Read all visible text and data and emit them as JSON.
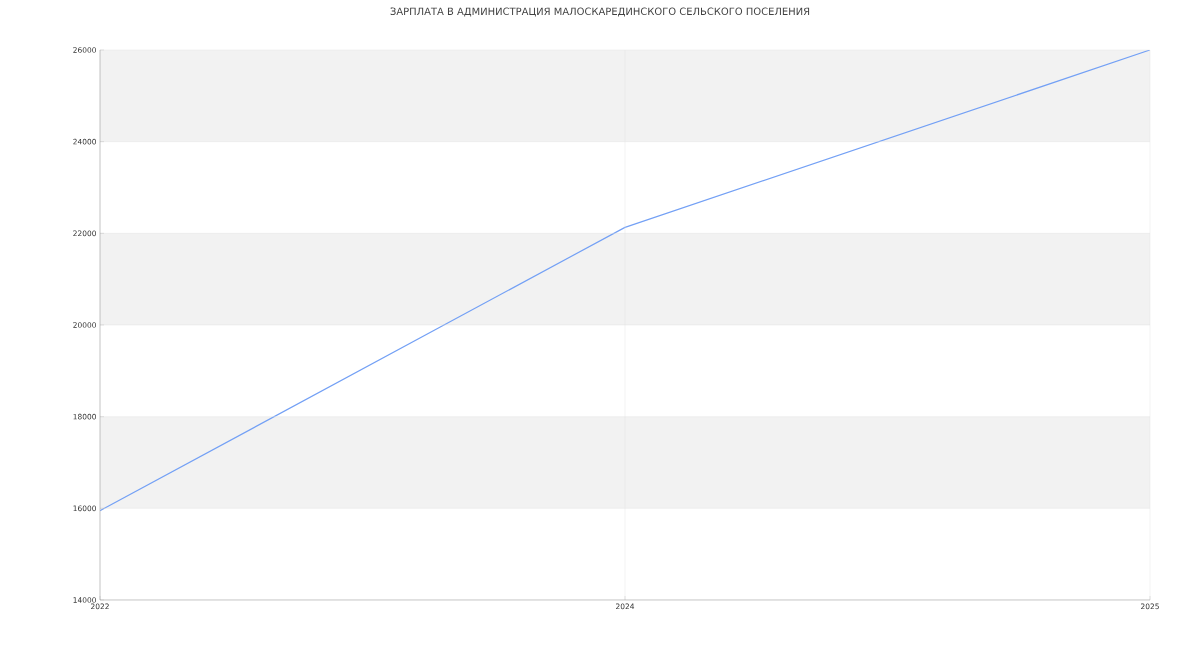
{
  "chart_data": {
    "type": "line",
    "title": "ЗАРПЛАТА В АДМИНИСТРАЦИЯ МАЛОСКАРЕДИНСКОГО СЕЛЬСКОГО ПОСЕЛЕНИЯ",
    "categories": [
      "2022",
      "2024",
      "2025"
    ],
    "series": [
      {
        "color": "#73a0f5",
        "values": [
          15950,
          22130,
          26000
        ]
      }
    ],
    "ylim": [
      14000,
      26000
    ],
    "yticks": [
      14000,
      16000,
      18000,
      20000,
      22000,
      24000,
      26000
    ],
    "grid": true,
    "marker": "none",
    "line_style": "solid"
  }
}
